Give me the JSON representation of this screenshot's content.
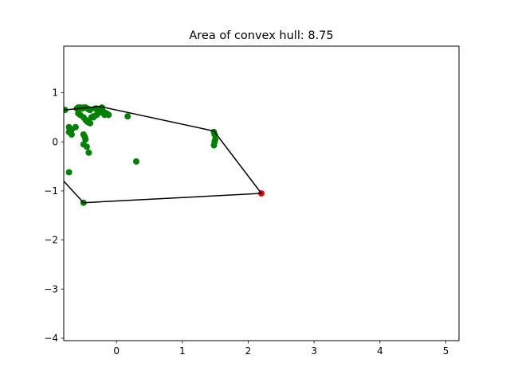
{
  "chart_data": {
    "type": "scatter",
    "title": "Area of convex hull: 8.75",
    "xlabel": "",
    "ylabel": "",
    "xlim": [
      -0.8,
      5.2
    ],
    "ylim": [
      -4.05,
      1.95
    ],
    "x_ticks": [
      0,
      1,
      2,
      3,
      4,
      5
    ],
    "x_tick_labels": [
      "0",
      "1",
      "2",
      "3",
      "4",
      "5"
    ],
    "y_ticks": [
      1,
      0,
      -1,
      -2,
      -3,
      -4
    ],
    "y_tick_labels": [
      "1",
      "0",
      "−1",
      "−2",
      "−3",
      "−4"
    ],
    "grid": false,
    "legend": null,
    "colors": {
      "points": "#008000",
      "highlight": "#ff0000",
      "hull": "#000000"
    },
    "series": [
      {
        "marker": "circle",
        "color": "#008000",
        "x": [
          -0.78,
          -0.72,
          -0.68,
          -0.6,
          -0.58,
          -0.55,
          -0.52,
          -0.5,
          -0.47,
          -0.44,
          -0.42,
          -0.4,
          -0.38,
          -0.35,
          -0.32,
          -0.3,
          -0.28,
          -0.25,
          -0.22,
          -0.2,
          -0.18,
          -0.15,
          -0.12,
          -0.58,
          -0.55,
          -0.5,
          -0.47,
          -0.45,
          -0.43,
          -0.4,
          -0.35,
          -0.3,
          -0.2,
          -0.15,
          -0.12,
          -0.72,
          -0.68,
          -0.62,
          -0.5,
          -0.48,
          -0.47,
          -0.5,
          -0.45,
          -0.42,
          -0.72,
          0.17,
          0.3,
          1.48,
          1.49,
          1.5,
          1.49,
          1.48,
          -0.5
        ],
        "y": [
          0.65,
          0.3,
          0.25,
          0.68,
          0.7,
          0.7,
          0.68,
          0.7,
          0.7,
          0.68,
          0.66,
          0.65,
          0.5,
          0.52,
          0.68,
          0.68,
          0.62,
          0.6,
          0.7,
          0.62,
          0.55,
          0.58,
          0.55,
          0.58,
          0.55,
          0.5,
          0.45,
          0.42,
          0.4,
          0.38,
          0.5,
          0.55,
          0.6,
          0.58,
          0.55,
          0.2,
          0.15,
          0.3,
          0.15,
          0.1,
          0.05,
          -0.05,
          -0.1,
          -0.22,
          -0.62,
          0.52,
          -0.4,
          0.2,
          0.15,
          0.05,
          0.0,
          -0.07,
          -1.24
        ]
      },
      {
        "marker": "circle",
        "color": "#ff0000",
        "x": [
          2.2
        ],
        "y": [
          -1.05
        ]
      }
    ],
    "hull_path": {
      "color": "#000000",
      "x": [
        -0.8,
        -0.25,
        1.48,
        2.2,
        -0.5,
        -0.8
      ],
      "y": [
        0.65,
        0.72,
        0.22,
        -1.05,
        -1.24,
        -0.8
      ]
    }
  }
}
